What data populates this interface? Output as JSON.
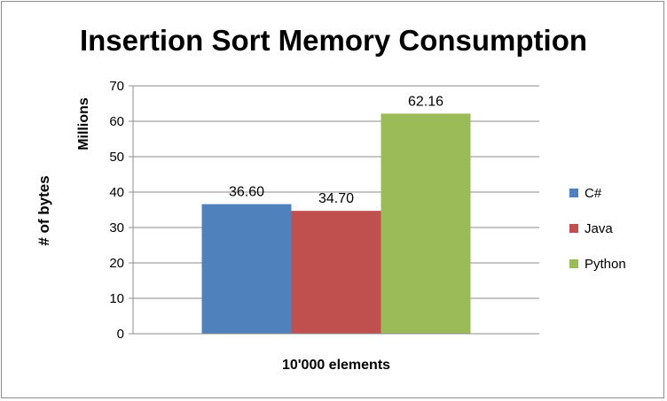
{
  "chart_data": {
    "type": "bar",
    "title": "Insertion Sort Memory Consumption",
    "xlabel": "10'000 elements",
    "ylabel": "# of bytes",
    "y_unit_label": "Millions",
    "categories": [
      "10'000 elements"
    ],
    "ylim": [
      0,
      70
    ],
    "yticks": [
      "0",
      "10",
      "20",
      "30",
      "40",
      "50",
      "60",
      "70"
    ],
    "grid": true,
    "legend_position": "right",
    "series": [
      {
        "name": "C#",
        "values": [
          36.6
        ],
        "label": "36.60",
        "color": "#4f81bd"
      },
      {
        "name": "Java",
        "values": [
          34.7
        ],
        "label": "34.70",
        "color": "#c0504d"
      },
      {
        "name": "Python",
        "values": [
          62.16
        ],
        "label": "62.16",
        "color": "#9bbb59"
      }
    ]
  }
}
